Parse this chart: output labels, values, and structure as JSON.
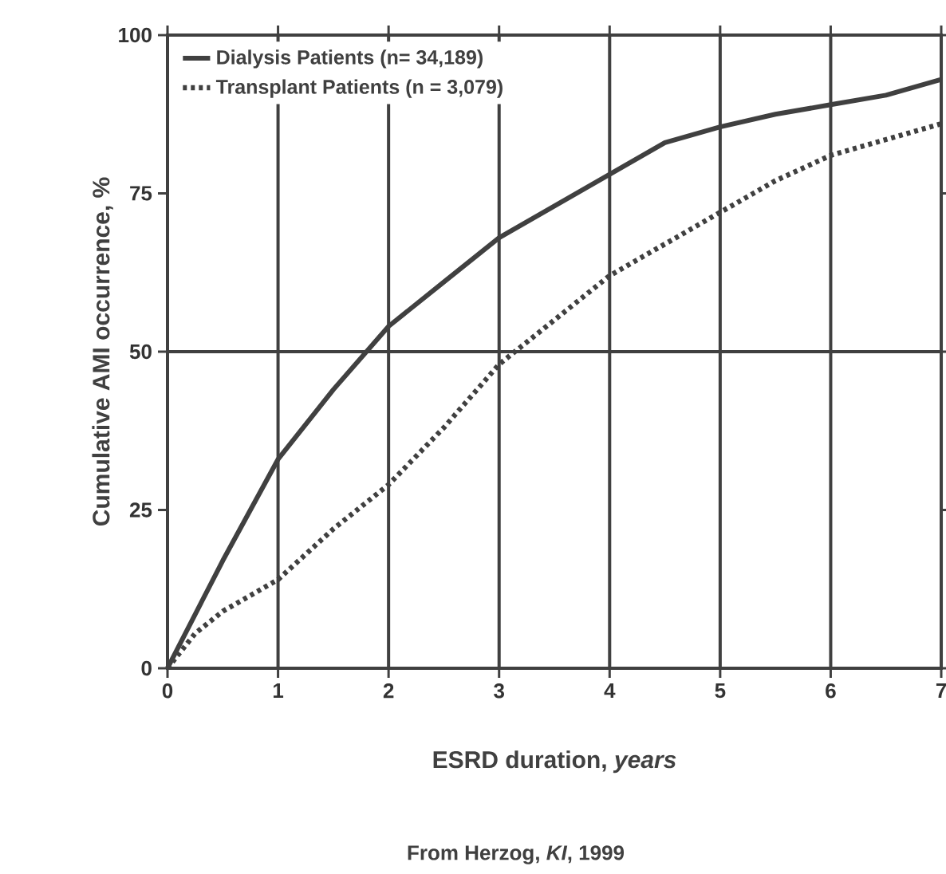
{
  "chart_data": {
    "type": "line",
    "xlabel": "ESRD duration, *years*",
    "ylabel": "Cumulative AMI occurrence, %",
    "annotations": [
      "From Herzog, *KI*, 1999"
    ],
    "xlim": [
      0,
      7
    ],
    "ylim": [
      0,
      100
    ],
    "xticks": [
      0,
      1,
      2,
      3,
      4,
      5,
      6,
      7
    ],
    "yticks": [
      0,
      25,
      50,
      75,
      100
    ],
    "grid": "x",
    "legend": "top left",
    "marker": "none",
    "ref_lines": [
      {
        "axis": "y",
        "value": 50,
        "color": "#404040"
      }
    ],
    "series": [
      {
        "name": "Dialysis Patients (n= 34,189)",
        "color": "#404040",
        "line_style": "solid",
        "x": [
          0,
          0.5,
          1,
          1.5,
          2,
          2.5,
          3,
          3.5,
          4,
          4.5,
          5,
          5.5,
          6,
          6.5,
          7
        ],
        "values": [
          0,
          17,
          33,
          44,
          54,
          61,
          68,
          73,
          78,
          83,
          85.5,
          87.5,
          89,
          90.5,
          93
        ]
      },
      {
        "name": "Transplant Patients (n = 3,079)",
        "color": "#404040",
        "line_style": "dotted",
        "x": [
          0,
          0.25,
          0.5,
          1,
          1.5,
          2,
          2.5,
          3,
          3.5,
          4,
          4.5,
          5,
          5.5,
          6,
          6.5,
          7
        ],
        "values": [
          0,
          5.5,
          9,
          14,
          22,
          29,
          38,
          48,
          55,
          62,
          67,
          72,
          77,
          81,
          83.5,
          86
        ]
      }
    ]
  }
}
